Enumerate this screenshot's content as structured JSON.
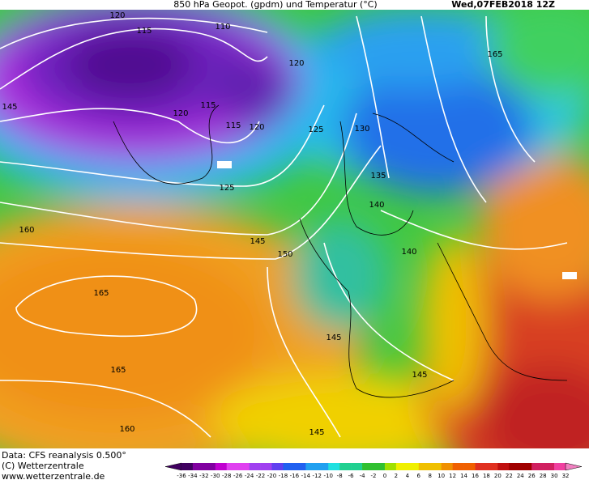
{
  "header": {
    "title": "850 hPa Geopot. (gpdm) und Temperatur (°C)",
    "date": "Wed,07FEB2018 12Z"
  },
  "footer": {
    "lines": [
      "Data: CFS reanalysis 0.500°",
      "(C) Wetterzentrale",
      "www.wetterzentrale.de"
    ]
  },
  "contour_labels": [
    120,
    115,
    110,
    120,
    115,
    120,
    115,
    120,
    125,
    130,
    145,
    165,
    135,
    125,
    140,
    145,
    150,
    140,
    160,
    165,
    165,
    145,
    145,
    160,
    145
  ],
  "colorbar": {
    "ticks": [
      -36,
      -34,
      -32,
      -30,
      -28,
      -26,
      -24,
      -22,
      -20,
      -18,
      -16,
      -14,
      -12,
      -10,
      -8,
      -6,
      -4,
      -2,
      0,
      2,
      4,
      6,
      8,
      10,
      12,
      14,
      16,
      18,
      20,
      22,
      24,
      26,
      28,
      30,
      32
    ]
  }
}
